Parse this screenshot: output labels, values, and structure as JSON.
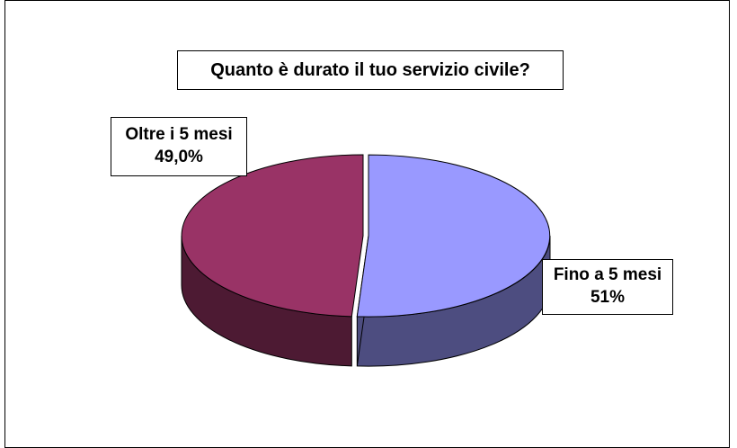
{
  "chart_data": {
    "type": "pie",
    "title": "Quanto è durato il tuo servizio civile?",
    "slices": [
      {
        "label": "Fino a 5 mesi",
        "value": 51,
        "value_text": "51%",
        "color": "#9999ff",
        "side_color": "#4d4d80",
        "exploded": true
      },
      {
        "label": "Oltre i 5 mesi",
        "value": 49.0,
        "value_text": "49,0%",
        "color": "#993366",
        "side_color": "#4d1a33",
        "exploded": false
      }
    ],
    "style": "3d",
    "legend": "none"
  }
}
